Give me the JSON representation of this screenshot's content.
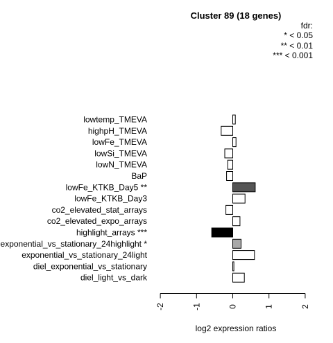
{
  "chart_data": {
    "type": "bar",
    "orientation": "horizontal",
    "title": "Cluster 89 (18 genes)",
    "xlabel": "log2 expression ratios",
    "ylabel": "",
    "xlim": [
      -2,
      2
    ],
    "xticks": [
      "-2",
      "-1",
      "0",
      "1",
      "2"
    ],
    "grid": false,
    "legend_position": "top-right",
    "legend": {
      "title": "fdr:",
      "entries": [
        "* < 0.05",
        "** < 0.01",
        "*** < 0.001"
      ]
    },
    "categories": [
      "lowtemp_TMEVA",
      "highpH_TMEVA",
      "lowFe_TMEVA",
      "lowSi_TMEVA",
      "lowN_TMEVA",
      "BaP",
      "lowFe_KTKB_Day5 **",
      "lowFe_KTKB_Day3",
      "co2_elevated_stat_arrays",
      "co2_elevated_expo_arrays",
      "highlight_arrays ***",
      "exponential_vs_stationary_24highlight *",
      "exponential_vs_stationary_24light",
      "diel_exponential_vs_stationary",
      "diel_light_vs_dark"
    ],
    "values": [
      0.07,
      -0.32,
      0.09,
      -0.22,
      -0.14,
      -0.17,
      0.62,
      0.34,
      -0.19,
      0.2,
      -0.58,
      0.23,
      0.6,
      0.03,
      0.32
    ],
    "significance": [
      "none",
      "none",
      "none",
      "none",
      "none",
      "none",
      "**",
      "none",
      "none",
      "none",
      "***",
      "*",
      "none",
      "none",
      "none"
    ],
    "colors": {
      "none": "#ffffff",
      "*": "#a8a8a8",
      "**": "#555555",
      "***": "#000000",
      "stroke": "#000000"
    }
  }
}
